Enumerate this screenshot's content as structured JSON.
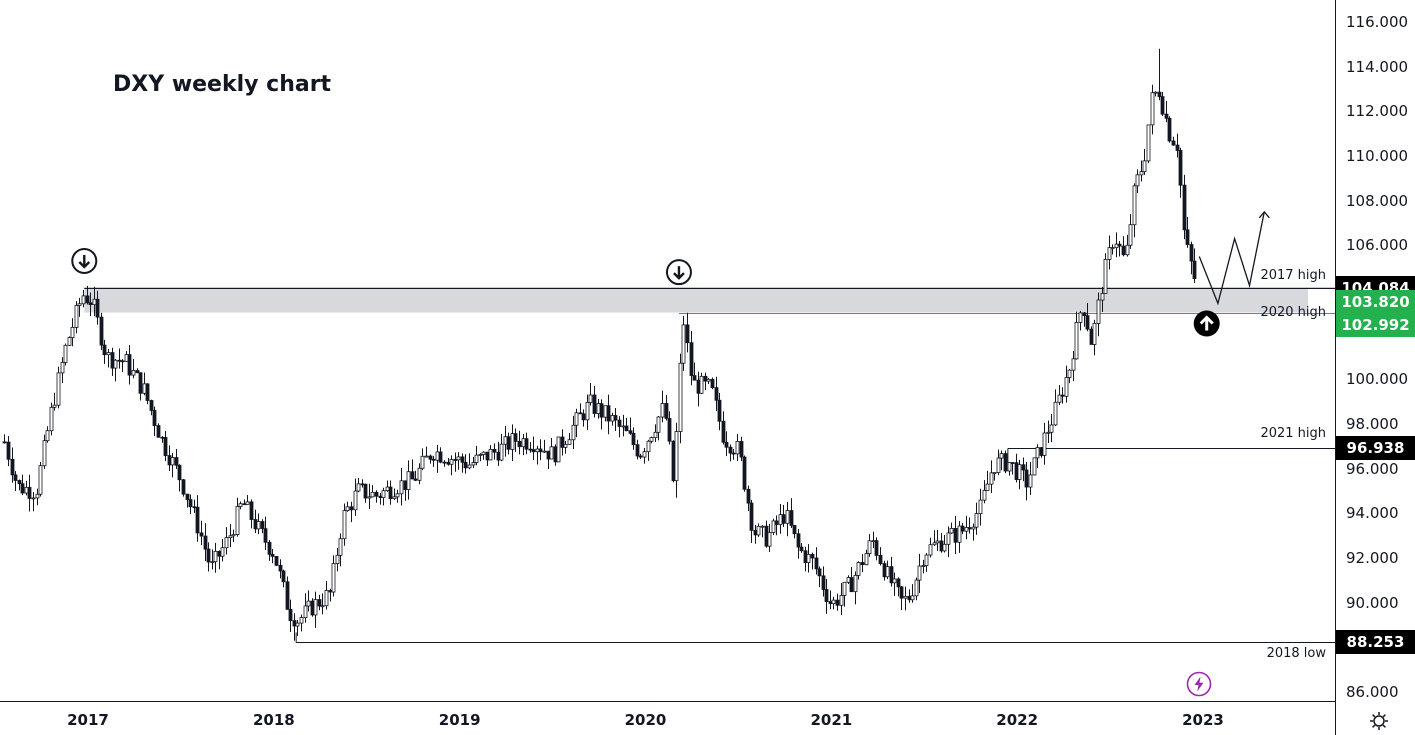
{
  "title": "DXY weekly chart",
  "chart_data": {
    "type": "candlestick",
    "title": "DXY weekly chart",
    "y_ticks": [
      "116.000",
      "114.000",
      "112.000",
      "110.000",
      "108.000",
      "106.000",
      "100.000",
      "98.000",
      "96.000",
      "94.000",
      "92.000",
      "90.000",
      "86.000"
    ],
    "ylim": [
      85.5,
      117
    ],
    "x_ticks": [
      {
        "label": "2017",
        "year": 2017.0
      },
      {
        "label": "2018",
        "year": 2018.0
      },
      {
        "label": "2019",
        "year": 2019.0
      },
      {
        "label": "2020",
        "year": 2020.0
      },
      {
        "label": "2021",
        "year": 2021.0
      },
      {
        "label": "2022",
        "year": 2022.0
      },
      {
        "label": "2023",
        "year": 2023.0
      }
    ],
    "xlim": [
      2016.54,
      2024.0
    ],
    "keypoints": [
      [
        2016.55,
        97.2
      ],
      [
        2016.62,
        95.2
      ],
      [
        2016.72,
        95.0
      ],
      [
        2016.8,
        98.5
      ],
      [
        2016.88,
        101.5
      ],
      [
        2016.97,
        103.8
      ],
      [
        2017.02,
        103.5
      ],
      [
        2017.1,
        101.0
      ],
      [
        2017.2,
        100.8
      ],
      [
        2017.3,
        99.5
      ],
      [
        2017.4,
        97.2
      ],
      [
        2017.5,
        95.5
      ],
      [
        2017.6,
        93.2
      ],
      [
        2017.66,
        91.5
      ],
      [
        2017.75,
        92.8
      ],
      [
        2017.83,
        94.5
      ],
      [
        2017.92,
        93.2
      ],
      [
        2018.0,
        92.2
      ],
      [
        2018.08,
        89.6
      ],
      [
        2018.13,
        89.2
      ],
      [
        2018.2,
        89.8
      ],
      [
        2018.3,
        90.4
      ],
      [
        2018.37,
        93.8
      ],
      [
        2018.45,
        95.0
      ],
      [
        2018.55,
        94.8
      ],
      [
        2018.65,
        95.2
      ],
      [
        2018.75,
        95.5
      ],
      [
        2018.85,
        96.8
      ],
      [
        2018.95,
        96.5
      ],
      [
        2019.05,
        96.2
      ],
      [
        2019.2,
        96.8
      ],
      [
        2019.3,
        97.3
      ],
      [
        2019.4,
        97.2
      ],
      [
        2019.5,
        96.6
      ],
      [
        2019.6,
        97.8
      ],
      [
        2019.7,
        98.9
      ],
      [
        2019.8,
        98.3
      ],
      [
        2019.9,
        97.5
      ],
      [
        2019.97,
        96.7
      ],
      [
        2020.1,
        98.8
      ],
      [
        2020.15,
        95.2
      ],
      [
        2020.2,
        102.8
      ],
      [
        2020.25,
        99.8
      ],
      [
        2020.35,
        99.6
      ],
      [
        2020.42,
        97.4
      ],
      [
        2020.5,
        96.8
      ],
      [
        2020.58,
        93.2
      ],
      [
        2020.65,
        92.9
      ],
      [
        2020.75,
        94.0
      ],
      [
        2020.82,
        92.4
      ],
      [
        2020.9,
        91.8
      ],
      [
        2021.0,
        89.9
      ],
      [
        2021.1,
        90.8
      ],
      [
        2021.22,
        92.8
      ],
      [
        2021.3,
        91.2
      ],
      [
        2021.38,
        90.0
      ],
      [
        2021.42,
        90.3
      ],
      [
        2021.5,
        92.3
      ],
      [
        2021.6,
        92.8
      ],
      [
        2021.7,
        93.2
      ],
      [
        2021.8,
        94.2
      ],
      [
        2021.87,
        96.2
      ],
      [
        2021.95,
        96.3
      ],
      [
        2022.05,
        95.4
      ],
      [
        2022.12,
        96.8
      ],
      [
        2022.2,
        98.5
      ],
      [
        2022.28,
        100.5
      ],
      [
        2022.35,
        103.5
      ],
      [
        2022.4,
        101.6
      ],
      [
        2022.46,
        104.5
      ],
      [
        2022.52,
        106.5
      ],
      [
        2022.58,
        105.2
      ],
      [
        2022.63,
        108.5
      ],
      [
        2022.68,
        109.8
      ],
      [
        2022.72,
        112.5
      ],
      [
        2022.76,
        113.0
      ],
      [
        2022.82,
        111.0
      ],
      [
        2022.86,
        110.5
      ],
      [
        2022.9,
        106.2
      ],
      [
        2022.94,
        105.0
      ],
      [
        2022.97,
        104.0
      ]
    ],
    "wick_extremes": [
      [
        2022.77,
        114.8
      ],
      [
        2020.16,
        94.7
      ],
      [
        2018.1,
        88.3
      ]
    ],
    "zones": [
      {
        "from": 102.992,
        "to": 104.084,
        "fill": "#d8d9dc",
        "edge": "#2e9b57"
      }
    ],
    "levels": [
      {
        "label": "2017 high",
        "value": 104.084,
        "tag": "104.084",
        "tag_color": "#000000"
      },
      {
        "label": "2020 high",
        "value": 102.992,
        "tag": "102.992",
        "tag_color": "#22b14c"
      },
      {
        "label": "2021 high",
        "value": 96.938,
        "tag": "96.938",
        "tag_color": "#000000"
      },
      {
        "label": "2018 low",
        "value": 88.253,
        "tag": "88.253",
        "tag_color": "#000000"
      }
    ],
    "last_price": {
      "tag": "103.820",
      "tag_color": "#22b14c"
    },
    "projection_path": [
      [
        2022.98,
        105.5
      ],
      [
        2023.08,
        103.4
      ],
      [
        2023.17,
        106.3
      ],
      [
        2023.25,
        104.2
      ],
      [
        2023.33,
        107.5
      ]
    ],
    "markers": [
      {
        "kind": "down-arrow",
        "year": 2016.98,
        "value": 105.3
      },
      {
        "kind": "down-arrow",
        "year": 2020.18,
        "value": 104.8
      },
      {
        "kind": "up-arrow",
        "year": 2023.02,
        "value": 102.5
      }
    ]
  },
  "colors": {
    "candle": "#131722",
    "zone": "#d8d9dc",
    "zone_edge": "#2e9b57",
    "green": "#22b14c",
    "axis": "#131722",
    "badge": "#9c27b0"
  },
  "icons": {
    "settings": "gear-icon",
    "tv_badge": "lightning-icon"
  }
}
